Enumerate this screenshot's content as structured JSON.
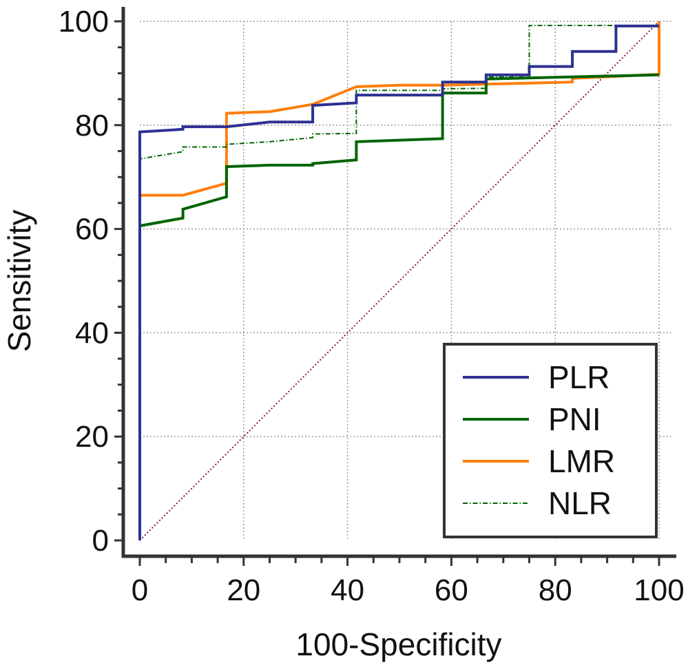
{
  "chart_data": {
    "type": "line",
    "title": "",
    "xlabel": "100-Specificity",
    "ylabel": "Sensitivity",
    "xlim": [
      0,
      100
    ],
    "ylim": [
      0,
      100
    ],
    "xticks": [
      0,
      20,
      40,
      60,
      80,
      100
    ],
    "yticks": [
      0,
      20,
      40,
      60,
      80,
      100
    ],
    "grid": true,
    "legend_position": "bottom-right",
    "reference_line": {
      "x": [
        0,
        100
      ],
      "y": [
        0,
        100
      ],
      "color": "#8b1a1a",
      "style": "dotted"
    },
    "series": [
      {
        "name": "PLR",
        "color": "#2e3192",
        "style": "solid",
        "x": [
          0,
          0,
          8.3,
          8.3,
          16.7,
          25,
          33.3,
          33.3,
          41.7,
          41.7,
          58.3,
          58.3,
          66.7,
          66.7,
          75,
          75,
          83.3,
          83.3,
          91.7,
          91.7,
          100
        ],
        "y": [
          0,
          78.7,
          79.2,
          79.7,
          79.7,
          80.6,
          80.6,
          83.8,
          84.3,
          85.8,
          85.8,
          88.3,
          88.3,
          89.7,
          89.7,
          91.3,
          91.3,
          94.2,
          94.2,
          99.1,
          99.1
        ]
      },
      {
        "name": "PNI",
        "color": "#006400",
        "style": "solid",
        "x": [
          0,
          0,
          8.3,
          8.3,
          16.7,
          16.7,
          25,
          33.3,
          33.3,
          41.7,
          41.7,
          58.3,
          58.3,
          66.7,
          66.7,
          100
        ],
        "y": [
          0,
          60.6,
          62.1,
          63.8,
          66.2,
          72,
          72.3,
          72.3,
          72.6,
          73.3,
          76.8,
          77.4,
          86.2,
          86.2,
          88.9,
          89.7
        ]
      },
      {
        "name": "LMR",
        "color": "#ff7f0e",
        "style": "solid",
        "x": [
          0,
          0,
          8.3,
          16.7,
          16.7,
          25,
          33.3,
          41.7,
          50,
          58.3,
          66.7,
          75,
          83.3,
          83.3,
          91.7,
          100,
          100
        ],
        "y": [
          0,
          66.5,
          66.5,
          68.8,
          82.3,
          82.6,
          84,
          87.4,
          87.7,
          87.7,
          87.9,
          88.1,
          88.3,
          89,
          89.4,
          89.8,
          100
        ]
      },
      {
        "name": "NLR",
        "color": "#006400",
        "style": "dashdot",
        "x": [
          0,
          0,
          8.3,
          8.3,
          16.7,
          16.7,
          25,
          33.3,
          33.3,
          41.7,
          41.7,
          58.3,
          58.3,
          66.7,
          66.7,
          75,
          75,
          100
        ],
        "y": [
          0,
          73.5,
          74.9,
          75.8,
          75.8,
          76.3,
          76.8,
          77.6,
          78.3,
          78.4,
          86.7,
          86.7,
          87,
          87.1,
          89.3,
          89.3,
          99.2,
          99.2
        ]
      }
    ]
  }
}
